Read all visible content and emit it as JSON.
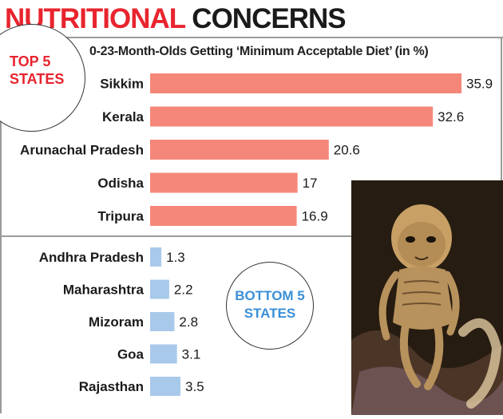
{
  "header": {
    "title_part1": "NUTRITIONAL",
    "title_part2": "CONCERNS"
  },
  "badges": {
    "top": "TOP 5 STATES",
    "bottom": "BOTTOM 5 STATES"
  },
  "colors": {
    "top_bar": "#f5877a",
    "bottom_bar": "#a9c9ea",
    "accent_red": "#e8242e",
    "accent_blue": "#3b8fd8"
  },
  "chart_data": [
    {
      "type": "bar",
      "orientation": "horizontal",
      "title": "0-23-Month-Olds Getting ‘Minimum Acceptable Diet’ (in %)",
      "group": "TOP 5 STATES",
      "categories": [
        "Sikkim",
        "Kerala",
        "Arunachal Pradesh",
        "Odisha",
        "Tripura"
      ],
      "values": [
        35.9,
        32.6,
        20.6,
        17,
        16.9
      ],
      "value_labels": [
        "35.9",
        "32.6",
        "20.6",
        "17",
        "16.9"
      ],
      "xlim": [
        0,
        35.9
      ]
    },
    {
      "type": "bar",
      "orientation": "horizontal",
      "group": "BOTTOM 5 STATES",
      "categories": [
        "Andhra Pradesh",
        "Maharashtra",
        "Mizoram",
        "Goa",
        "Rajasthan"
      ],
      "values": [
        1.3,
        2.2,
        2.8,
        3.1,
        3.5
      ],
      "value_labels": [
        "1.3",
        "2.2",
        "2.8",
        "3.1",
        "3.5"
      ],
      "xlim": [
        0,
        35.9
      ]
    }
  ],
  "photo": {
    "icon": "malnourished-child-illustration"
  }
}
